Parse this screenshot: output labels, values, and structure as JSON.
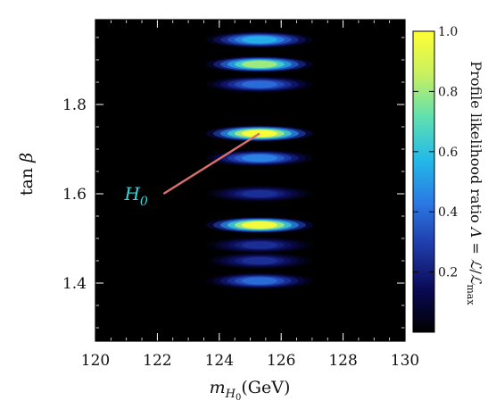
{
  "chart_data": {
    "type": "heatmap",
    "xlabel": "m_H0 (GeV)",
    "ylabel": "tan β",
    "xlim": [
      120,
      130
    ],
    "ylim": [
      1.27,
      1.99
    ],
    "xticks": [
      {
        "value": 120,
        "label": "120"
      },
      {
        "value": 122,
        "label": "122"
      },
      {
        "value": 124,
        "label": "124"
      },
      {
        "value": 126,
        "label": "126"
      },
      {
        "value": 128,
        "label": "128"
      },
      {
        "value": 130,
        "label": "130"
      }
    ],
    "yticks": [
      {
        "value": 1.4,
        "label": "1.4"
      },
      {
        "value": 1.6,
        "label": "1.6"
      },
      {
        "value": 1.8,
        "label": "1.8"
      }
    ],
    "colorbar": {
      "title": "Profile likelihood ratio Λ = ℒ/ℒmax",
      "range": [
        0,
        1
      ],
      "ticks": [
        {
          "value": 0.2,
          "label": "0.2"
        },
        {
          "value": 0.4,
          "label": "0.4"
        },
        {
          "value": 0.6,
          "label": "0.6"
        },
        {
          "value": 0.8,
          "label": "0.8"
        },
        {
          "value": 1.0,
          "label": "1.0"
        }
      ],
      "colormap": [
        "#000000",
        "#0a0a55",
        "#1f3aa8",
        "#2b78e4",
        "#23b9e9",
        "#5fe0b0",
        "#c8f060",
        "#ffff33"
      ]
    },
    "bands": [
      {
        "x": 125.3,
        "y": 1.945,
        "peak": 0.55
      },
      {
        "x": 125.3,
        "y": 1.89,
        "peak": 0.8
      },
      {
        "x": 125.3,
        "y": 1.845,
        "peak": 0.4
      },
      {
        "x": 125.3,
        "y": 1.735,
        "peak": 0.98
      },
      {
        "x": 125.3,
        "y": 1.68,
        "peak": 0.45
      },
      {
        "x": 125.3,
        "y": 1.6,
        "peak": 0.25
      },
      {
        "x": 125.3,
        "y": 1.53,
        "peak": 0.97
      },
      {
        "x": 125.3,
        "y": 1.485,
        "peak": 0.25
      },
      {
        "x": 125.3,
        "y": 1.45,
        "peak": 0.25
      },
      {
        "x": 125.3,
        "y": 1.405,
        "peak": 0.4
      }
    ],
    "annotations": [
      {
        "label": "H0",
        "text_x": 121.8,
        "text_y": 1.59,
        "line_from": [
          122.2,
          1.6
        ],
        "line_to": [
          125.3,
          1.735
        ],
        "text_color": "#2fdada",
        "line_color": "#d9706a"
      }
    ]
  }
}
